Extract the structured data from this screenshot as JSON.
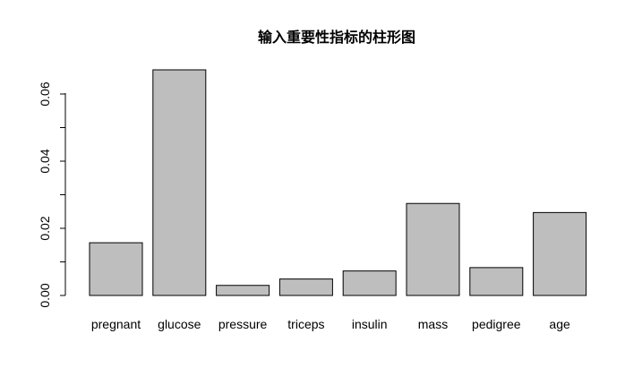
{
  "chart_data": {
    "type": "bar",
    "title": "输入重要性指标的柱形图",
    "xlabel": "",
    "ylabel": "",
    "categories": [
      "pregnant",
      "glucose",
      "pressure",
      "triceps",
      "insulin",
      "mass",
      "pedigree",
      "age"
    ],
    "values": [
      0.0157,
      0.0672,
      0.003,
      0.0049,
      0.0073,
      0.0274,
      0.0083,
      0.0247
    ],
    "ylim": [
      0,
      0.0672
    ],
    "yticks": [
      0.0,
      0.01,
      0.02,
      0.03,
      0.04,
      0.05,
      0.06
    ],
    "ytick_labels": [
      "0.00",
      "",
      "0.02",
      "",
      "0.04",
      "",
      "0.06"
    ],
    "grid": false,
    "legend": "none",
    "colors": {
      "bar_fill": "#bebebe",
      "bar_stroke": "#000000",
      "background": "#ffffff"
    }
  }
}
